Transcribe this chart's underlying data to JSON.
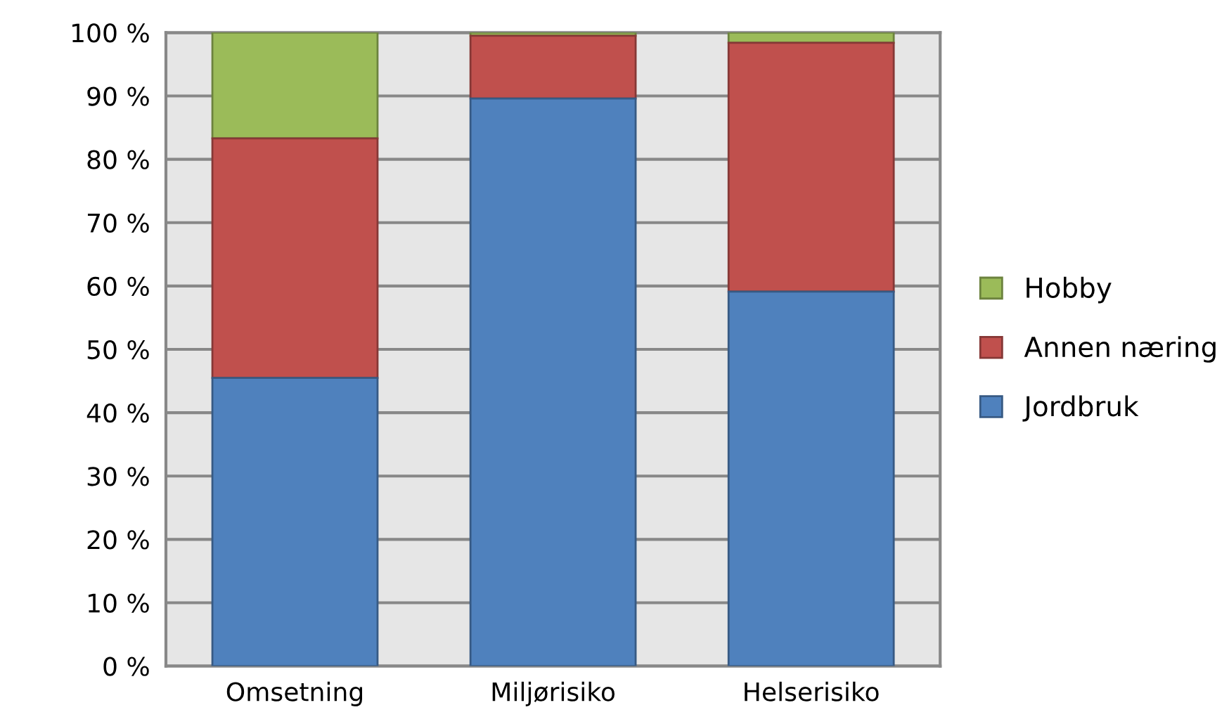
{
  "chart_data": {
    "type": "bar",
    "stacked": true,
    "categories": [
      "Omsetning",
      "Miljørisiko",
      "Helserisiko"
    ],
    "series": [
      {
        "name": "Jordbruk",
        "color": "#4f81bd",
        "values": [
          45.5,
          89.6,
          59.1
        ]
      },
      {
        "name": "Annen næring",
        "color": "#c0504d",
        "values": [
          37.8,
          9.9,
          39.3
        ]
      },
      {
        "name": "Hobby",
        "color": "#9bbb59",
        "values": [
          16.7,
          0.5,
          1.6
        ]
      }
    ],
    "ylim": [
      0,
      100
    ],
    "yticks": [
      {
        "value": 0,
        "label": "0 %"
      },
      {
        "value": 10,
        "label": "10 %"
      },
      {
        "value": 20,
        "label": "20 %"
      },
      {
        "value": 30,
        "label": "30 %"
      },
      {
        "value": 40,
        "label": "40 %"
      },
      {
        "value": 50,
        "label": "50 %"
      },
      {
        "value": 60,
        "label": "60 %"
      },
      {
        "value": 70,
        "label": "70 %"
      },
      {
        "value": 80,
        "label": "80 %"
      },
      {
        "value": 90,
        "label": "90 %"
      },
      {
        "value": 100,
        "label": "100 %"
      }
    ],
    "grid": "y",
    "legend": "right"
  }
}
